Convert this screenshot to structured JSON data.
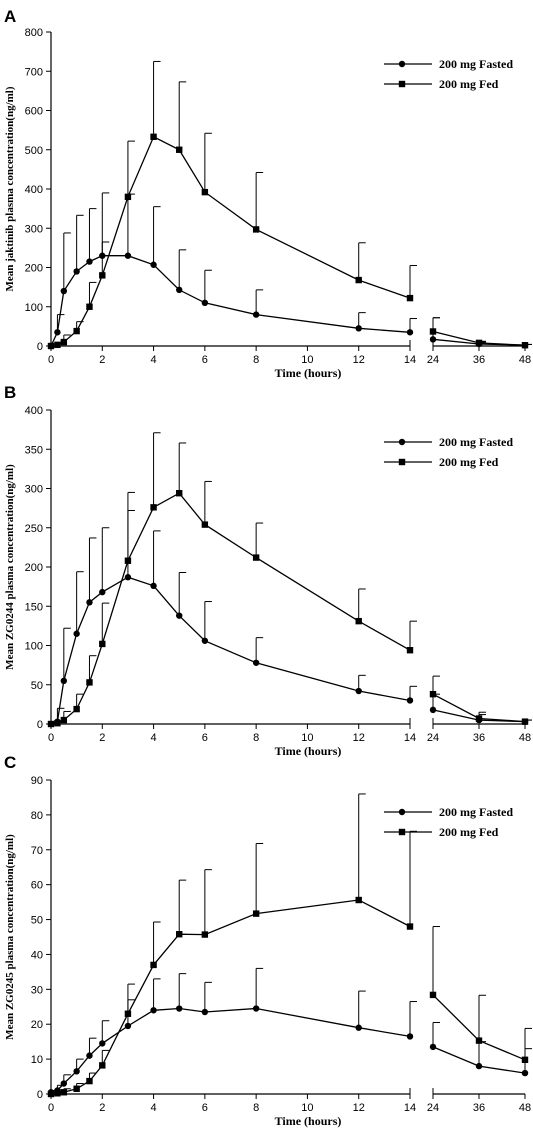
{
  "chart_data": [
    {
      "type": "line",
      "panel_label": "A",
      "xlabel": "Time (hours)",
      "ylabel": "Mean jaktinib plasma concentration(ng/ml)",
      "ylim": [
        0,
        800
      ],
      "yticks": [
        0,
        100,
        200,
        300,
        400,
        500,
        600,
        700,
        800
      ],
      "xticks": [
        "0",
        "2",
        "4",
        "6",
        "8",
        "10",
        "12",
        "14",
        "24",
        "36",
        "48"
      ],
      "x_axis_break": [
        14,
        24
      ],
      "legend_position": "top-right",
      "grid": false,
      "series": [
        {
          "name": "200 mg Fasted",
          "marker": "circle",
          "x": [
            0,
            0.25,
            0.5,
            1,
            1.5,
            2,
            3,
            4,
            5,
            6,
            8,
            12,
            14,
            24,
            36,
            48
          ],
          "y": [
            0,
            35,
            140,
            190,
            215,
            230,
            230,
            207,
            143,
            110,
            80,
            45,
            35,
            17,
            5,
            2
          ],
          "err_upper": [
            0,
            80,
            288,
            333,
            350,
            265,
            387,
            355,
            245,
            193,
            143,
            85,
            70,
            72,
            10,
            4
          ]
        },
        {
          "name": "200 mg Fed",
          "marker": "square",
          "x": [
            0,
            0.25,
            0.5,
            1,
            1.5,
            2,
            3,
            4,
            5,
            6,
            8,
            12,
            14,
            24,
            36,
            48
          ],
          "y": [
            0,
            3,
            10,
            38,
            100,
            180,
            380,
            533,
            500,
            392,
            297,
            168,
            122,
            37,
            8,
            2
          ],
          "err_upper": [
            0,
            6,
            28,
            62,
            162,
            390,
            522,
            725,
            673,
            542,
            442,
            263,
            205,
            72,
            12,
            4
          ]
        }
      ]
    },
    {
      "type": "line",
      "panel_label": "B",
      "xlabel": "Time (hours)",
      "ylabel": "Mean ZG0244 plasma concentration(ng/ml)",
      "ylim": [
        0,
        400
      ],
      "yticks": [
        0,
        50,
        100,
        150,
        200,
        250,
        300,
        350,
        400
      ],
      "xticks": [
        "0",
        "2",
        "4",
        "6",
        "8",
        "10",
        "12",
        "14",
        "24",
        "36",
        "48"
      ],
      "x_axis_break": [
        14,
        24
      ],
      "legend_position": "top-right",
      "grid": false,
      "series": [
        {
          "name": "200 mg Fasted",
          "marker": "circle",
          "x": [
            0,
            0.25,
            0.5,
            1,
            1.5,
            2,
            3,
            4,
            5,
            6,
            8,
            12,
            14,
            24,
            36,
            48
          ],
          "y": [
            0,
            3,
            55,
            115,
            155,
            168,
            187,
            176,
            138,
            106,
            78,
            42,
            30,
            18,
            5,
            3
          ],
          "err_upper": [
            0,
            20,
            122,
            194,
            237,
            250,
            272,
            246,
            193,
            156,
            110,
            62,
            48,
            38,
            12,
            5
          ]
        },
        {
          "name": "200 mg Fed",
          "marker": "square",
          "x": [
            0,
            0.25,
            0.5,
            1,
            1.5,
            2,
            3,
            4,
            5,
            6,
            8,
            12,
            14,
            24,
            36,
            48
          ],
          "y": [
            0,
            1,
            5,
            19,
            53,
            102,
            208,
            276,
            294,
            254,
            212,
            131,
            94,
            38,
            7,
            3
          ],
          "err_upper": [
            0,
            3,
            16,
            38,
            87,
            154,
            295,
            371,
            358,
            309,
            256,
            172,
            131,
            61,
            15,
            5
          ]
        }
      ]
    },
    {
      "type": "line",
      "panel_label": "C",
      "xlabel": "Time (hours)",
      "ylabel": "Mean ZG0245 plasma concentration(ng/ml)",
      "ylim": [
        0,
        90
      ],
      "yticks": [
        0,
        10,
        20,
        30,
        40,
        50,
        60,
        70,
        80,
        90
      ],
      "xticks": [
        "0",
        "2",
        "4",
        "6",
        "8",
        "10",
        "12",
        "14",
        "24",
        "36",
        "48"
      ],
      "x_axis_break": [
        14,
        24
      ],
      "legend_position": "top-right",
      "grid": false,
      "series": [
        {
          "name": "200 mg Fasted",
          "marker": "circle",
          "x": [
            0,
            0.25,
            0.5,
            1,
            1.5,
            2,
            3,
            4,
            5,
            6,
            8,
            12,
            14,
            24,
            36,
            48
          ],
          "y": [
            0.5,
            1,
            3,
            6.5,
            11,
            14.5,
            19.5,
            24,
            24.5,
            23.5,
            24.5,
            19,
            16.5,
            13.5,
            8,
            6
          ],
          "err_upper": [
            1,
            2.5,
            5.5,
            10,
            16,
            21,
            27,
            33,
            34.5,
            32,
            36,
            29.5,
            26.5,
            20.5,
            15,
            13
          ]
        },
        {
          "name": "200 mg Fed",
          "marker": "square",
          "x": [
            0,
            0.25,
            0.5,
            1,
            1.5,
            2,
            3,
            4,
            5,
            6,
            8,
            12,
            14,
            24,
            36,
            48
          ],
          "y": [
            0,
            0.2,
            0.5,
            1.5,
            3.7,
            8.2,
            23,
            37,
            45.8,
            45.7,
            51.7,
            55.6,
            48,
            28.4,
            15.3,
            9.8
          ],
          "err_upper": [
            0.3,
            0.7,
            1.5,
            3,
            6,
            12.5,
            31.5,
            49.3,
            61.3,
            64.3,
            71.8,
            86,
            75.3,
            48,
            28.3,
            18.8
          ]
        }
      ]
    }
  ]
}
